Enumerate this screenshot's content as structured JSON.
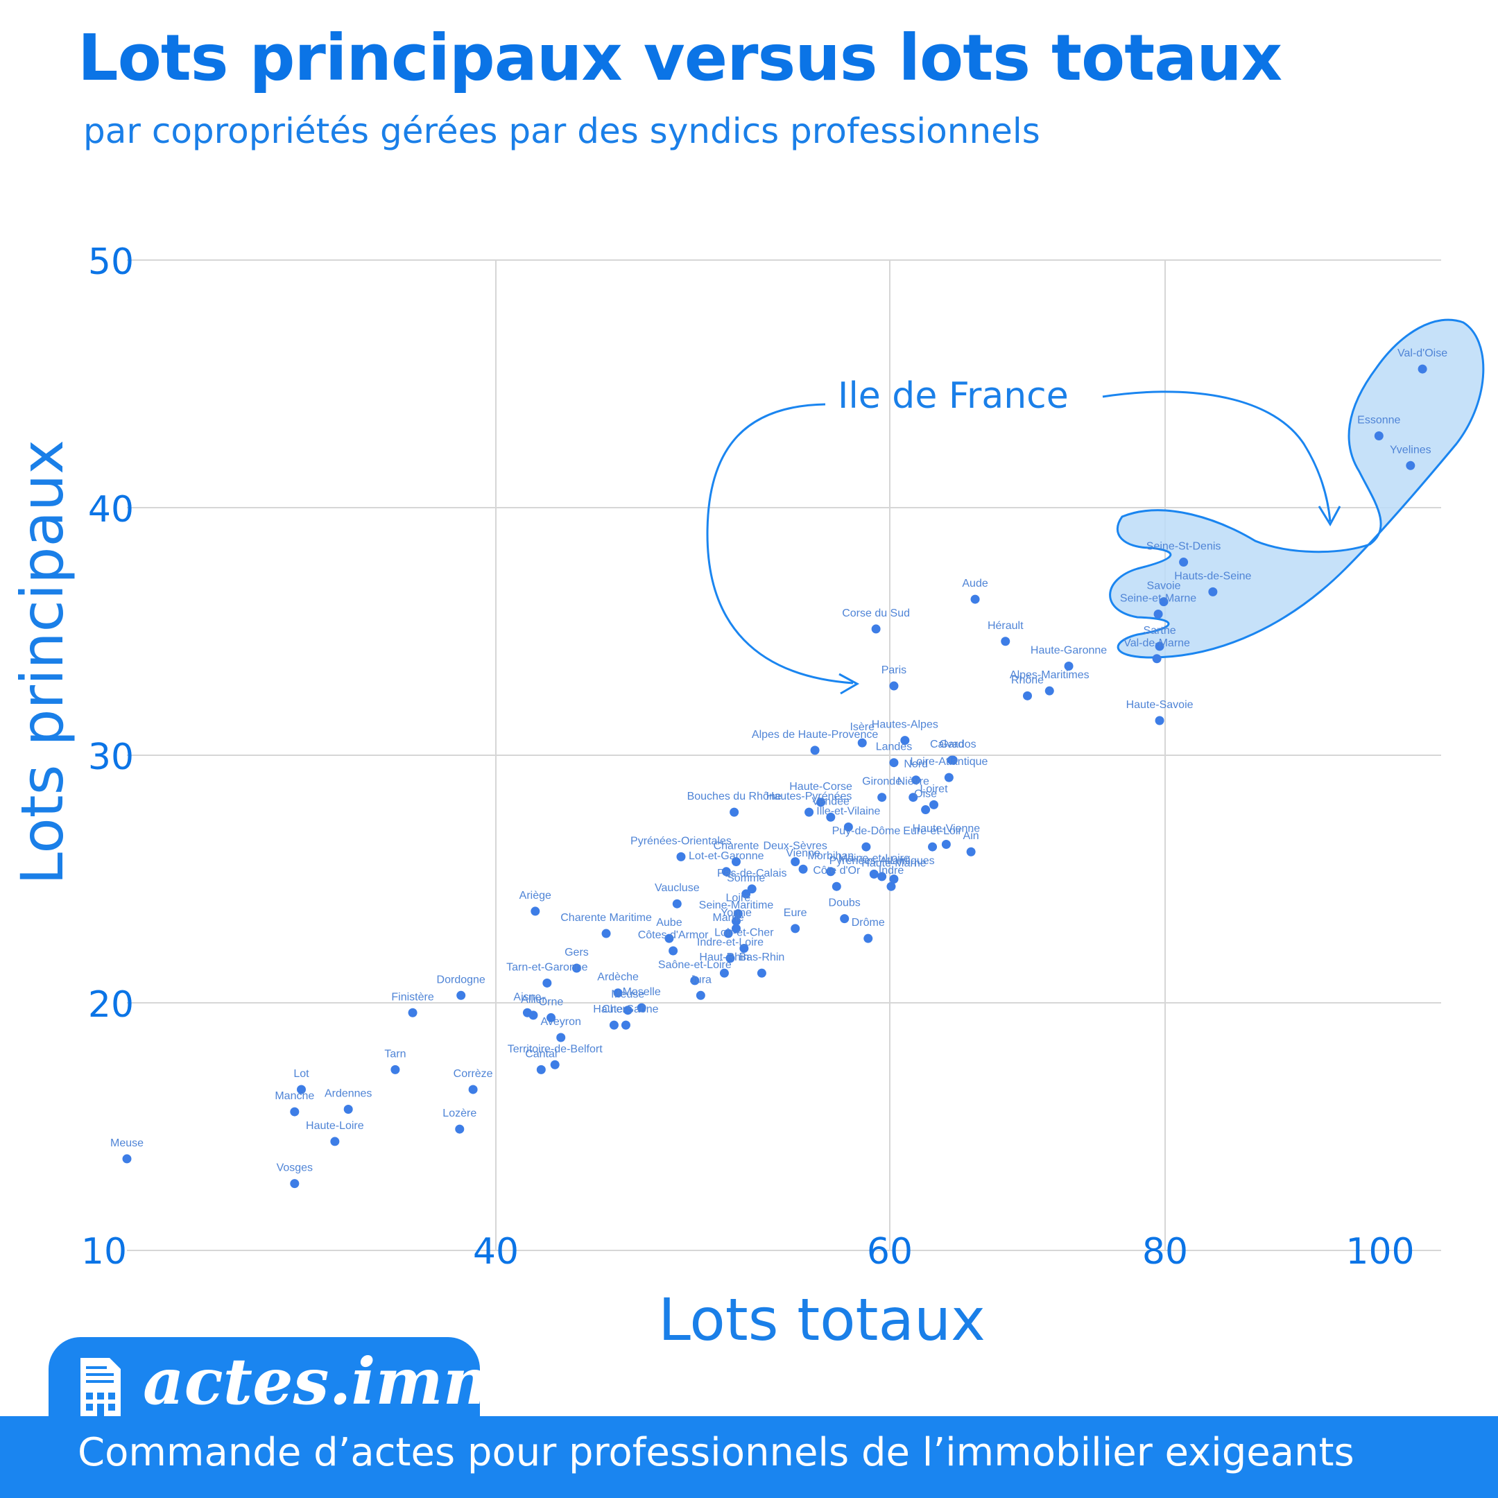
{
  "title": "Lots principaux versus lots totaux",
  "subtitle": "par copropriétés gérées par des syndics professionnels",
  "annotation": "Ile de France",
  "brand": {
    "name": "actes.immo",
    "tagline": "Commande d’actes pour professionnels de l’immobilier exigeants"
  },
  "colors": {
    "accent": "#0b74e6",
    "point": "#3d7de6",
    "label": "#4f84d6",
    "highlight_fill": "#bcdcf8",
    "highlight_stroke": "#1a85f0",
    "footer": "#1a85f0"
  },
  "chart_data": {
    "type": "scatter",
    "xlabel": "Lots totaux",
    "ylabel": "Lots principaux",
    "x_ticks": [
      "10",
      "40",
      "60",
      "80",
      "100"
    ],
    "y_ticks": [
      "50",
      "40",
      "30",
      "20"
    ],
    "grid": true,
    "points": [
      {
        "label": "Meuse",
        "x": 12.5,
        "y": 13.7
      },
      {
        "label": "Vosges",
        "x": 25.0,
        "y": 12.7
      },
      {
        "label": "Manche",
        "x": 25.0,
        "y": 15.6
      },
      {
        "label": "Lot",
        "x": 25.5,
        "y": 16.5
      },
      {
        "label": "Haute-Loire",
        "x": 28.0,
        "y": 14.4
      },
      {
        "label": "Ardennes",
        "x": 29.0,
        "y": 15.7
      },
      {
        "label": "Tarn",
        "x": 32.5,
        "y": 17.3
      },
      {
        "label": "Finistère",
        "x": 33.8,
        "y": 19.6
      },
      {
        "label": "Lozère",
        "x": 37.3,
        "y": 14.9
      },
      {
        "label": "Dordogne",
        "x": 37.4,
        "y": 20.3
      },
      {
        "label": "Corrèze",
        "x": 38.3,
        "y": 16.5
      },
      {
        "label": "Ariège",
        "x": 42.0,
        "y": 23.7
      },
      {
        "label": "Territoire-de-Belfort",
        "x": 43.0,
        "y": 17.5
      },
      {
        "label": "Aveyron",
        "x": 43.3,
        "y": 18.6
      },
      {
        "label": "Tarn-et-Garonne",
        "x": 42.6,
        "y": 20.8
      },
      {
        "label": "Aisne",
        "x": 41.6,
        "y": 19.6
      },
      {
        "label": "Allier",
        "x": 41.9,
        "y": 19.5
      },
      {
        "label": "Orne",
        "x": 42.8,
        "y": 19.4
      },
      {
        "label": "Cantal",
        "x": 42.3,
        "y": 17.3
      },
      {
        "label": "Gers",
        "x": 44.1,
        "y": 21.4
      },
      {
        "label": "Charente Maritime",
        "x": 45.6,
        "y": 22.8
      },
      {
        "label": "Ardèche",
        "x": 46.2,
        "y": 20.4
      },
      {
        "label": "Cher",
        "x": 46.0,
        "y": 19.1
      },
      {
        "label": "Haute-Saône",
        "x": 46.6,
        "y": 19.1
      },
      {
        "label": "Meuse",
        "x": 46.7,
        "y": 19.7
      },
      {
        "label": "Moselle",
        "x": 47.4,
        "y": 19.8
      },
      {
        "label": "Pyrénées-Orientales",
        "x": 49.4,
        "y": 25.9
      },
      {
        "label": "Vaucluse",
        "x": 49.2,
        "y": 24.0
      },
      {
        "label": "Aube",
        "x": 48.8,
        "y": 22.6
      },
      {
        "label": "Côtes d'Armor",
        "x": 49.0,
        "y": 22.1
      },
      {
        "label": "Saône-et-Loire",
        "x": 50.1,
        "y": 20.9
      },
      {
        "label": "Jura",
        "x": 50.4,
        "y": 20.3
      },
      {
        "label": "Lot-et-Garonne",
        "x": 51.7,
        "y": 25.3
      },
      {
        "label": "Charente",
        "x": 52.2,
        "y": 25.7
      },
      {
        "label": "Somme",
        "x": 52.7,
        "y": 24.4
      },
      {
        "label": "Pas-de-Calais",
        "x": 53.0,
        "y": 24.6
      },
      {
        "label": "Seine-Maritime",
        "x": 52.2,
        "y": 23.3
      },
      {
        "label": "Loire",
        "x": 52.3,
        "y": 23.6
      },
      {
        "label": "Marne",
        "x": 51.8,
        "y": 22.8
      },
      {
        "label": "Loir-et-Cher",
        "x": 52.6,
        "y": 22.2
      },
      {
        "label": "Yonne",
        "x": 52.2,
        "y": 23.0
      },
      {
        "label": "Haut-Rhin",
        "x": 51.6,
        "y": 21.2
      },
      {
        "label": "Bas-Rhin",
        "x": 53.5,
        "y": 21.2
      },
      {
        "label": "Indre-et-Loire",
        "x": 51.9,
        "y": 21.8
      },
      {
        "label": "Eure",
        "x": 55.2,
        "y": 23.0
      },
      {
        "label": "Bouches du Rhône",
        "x": 52.1,
        "y": 27.7
      },
      {
        "label": "Deux-Sèvres",
        "x": 55.2,
        "y": 25.7
      },
      {
        "label": "Vienne",
        "x": 55.6,
        "y": 25.4
      },
      {
        "label": "Hautes-Pyrénées",
        "x": 55.9,
        "y": 27.7
      },
      {
        "label": "Alpes de Haute-Provence",
        "x": 56.2,
        "y": 30.2
      },
      {
        "label": "Haute-Corse",
        "x": 56.5,
        "y": 28.1
      },
      {
        "label": "Côte d'Or",
        "x": 57.3,
        "y": 24.7
      },
      {
        "label": "Morbihan",
        "x": 57.0,
        "y": 25.3
      },
      {
        "label": "Doubs",
        "x": 57.7,
        "y": 23.4
      },
      {
        "label": "Drôme",
        "x": 58.9,
        "y": 22.6
      },
      {
        "label": "Isère",
        "x": 58.6,
        "y": 30.5
      },
      {
        "label": "Vendée",
        "x": 57.0,
        "y": 27.5
      },
      {
        "label": "Ille-et-Vilaine",
        "x": 57.9,
        "y": 27.1
      },
      {
        "label": "Puy-de-Dôme",
        "x": 58.8,
        "y": 26.3
      },
      {
        "label": "Pyrénées-Atlantiques",
        "x": 59.6,
        "y": 25.1
      },
      {
        "label": "Maine-et-Loire",
        "x": 59.2,
        "y": 25.2
      },
      {
        "label": "Indre",
        "x": 60.1,
        "y": 24.7
      },
      {
        "label": "Haute-Marne",
        "x": 60.3,
        "y": 25.0
      },
      {
        "label": "Gironde",
        "x": 59.6,
        "y": 28.3
      },
      {
        "label": "Landes",
        "x": 60.3,
        "y": 29.7
      },
      {
        "label": "Hautes-Alpes",
        "x": 61.1,
        "y": 30.6
      },
      {
        "label": "Nièvre",
        "x": 61.7,
        "y": 28.3
      },
      {
        "label": "Oise",
        "x": 62.6,
        "y": 27.8
      },
      {
        "label": "Loiret",
        "x": 63.2,
        "y": 28.0
      },
      {
        "label": "Eure-et-Loir",
        "x": 63.1,
        "y": 26.3
      },
      {
        "label": "Gard",
        "x": 64.5,
        "y": 29.8
      },
      {
        "label": "Calvados",
        "x": 64.6,
        "y": 29.8
      },
      {
        "label": "Nord",
        "x": 61.9,
        "y": 29.0
      },
      {
        "label": "Loire-Atlantique",
        "x": 64.3,
        "y": 29.1
      },
      {
        "label": "Haute-Vienne",
        "x": 64.1,
        "y": 26.4
      },
      {
        "label": "Ain",
        "x": 65.9,
        "y": 26.1
      },
      {
        "label": "Corse du Sud",
        "x": 59.3,
        "y": 35.1
      },
      {
        "label": "Paris",
        "x": 60.3,
        "y": 32.8
      },
      {
        "label": "Aude",
        "x": 66.2,
        "y": 36.3
      },
      {
        "label": "Hérault",
        "x": 68.4,
        "y": 34.6
      },
      {
        "label": "Rhône",
        "x": 70.0,
        "y": 32.4
      },
      {
        "label": "Alpes-Maritimes",
        "x": 71.6,
        "y": 32.6
      },
      {
        "label": "Haute-Garonne",
        "x": 73.0,
        "y": 33.6
      },
      {
        "label": "Haute-Savoie",
        "x": 79.6,
        "y": 31.4
      },
      {
        "label": "Val-de-Marne",
        "x": 79.4,
        "y": 33.9
      },
      {
        "label": "Sarthe",
        "x": 79.6,
        "y": 34.4
      },
      {
        "label": "Seine-et-Marne",
        "x": 79.5,
        "y": 35.7
      },
      {
        "label": "Savoie",
        "x": 79.9,
        "y": 36.2
      },
      {
        "label": "Seine-St-Denis",
        "x": 81.7,
        "y": 37.8
      },
      {
        "label": "Hauts-de-Seine",
        "x": 84.4,
        "y": 36.6
      },
      {
        "label": "Essonne",
        "x": 99.7,
        "y": 42.9
      },
      {
        "label": "Yvelines",
        "x": 102.6,
        "y": 41.7
      },
      {
        "label": "Val-d'Oise",
        "x": 103.7,
        "y": 45.6
      }
    ]
  }
}
